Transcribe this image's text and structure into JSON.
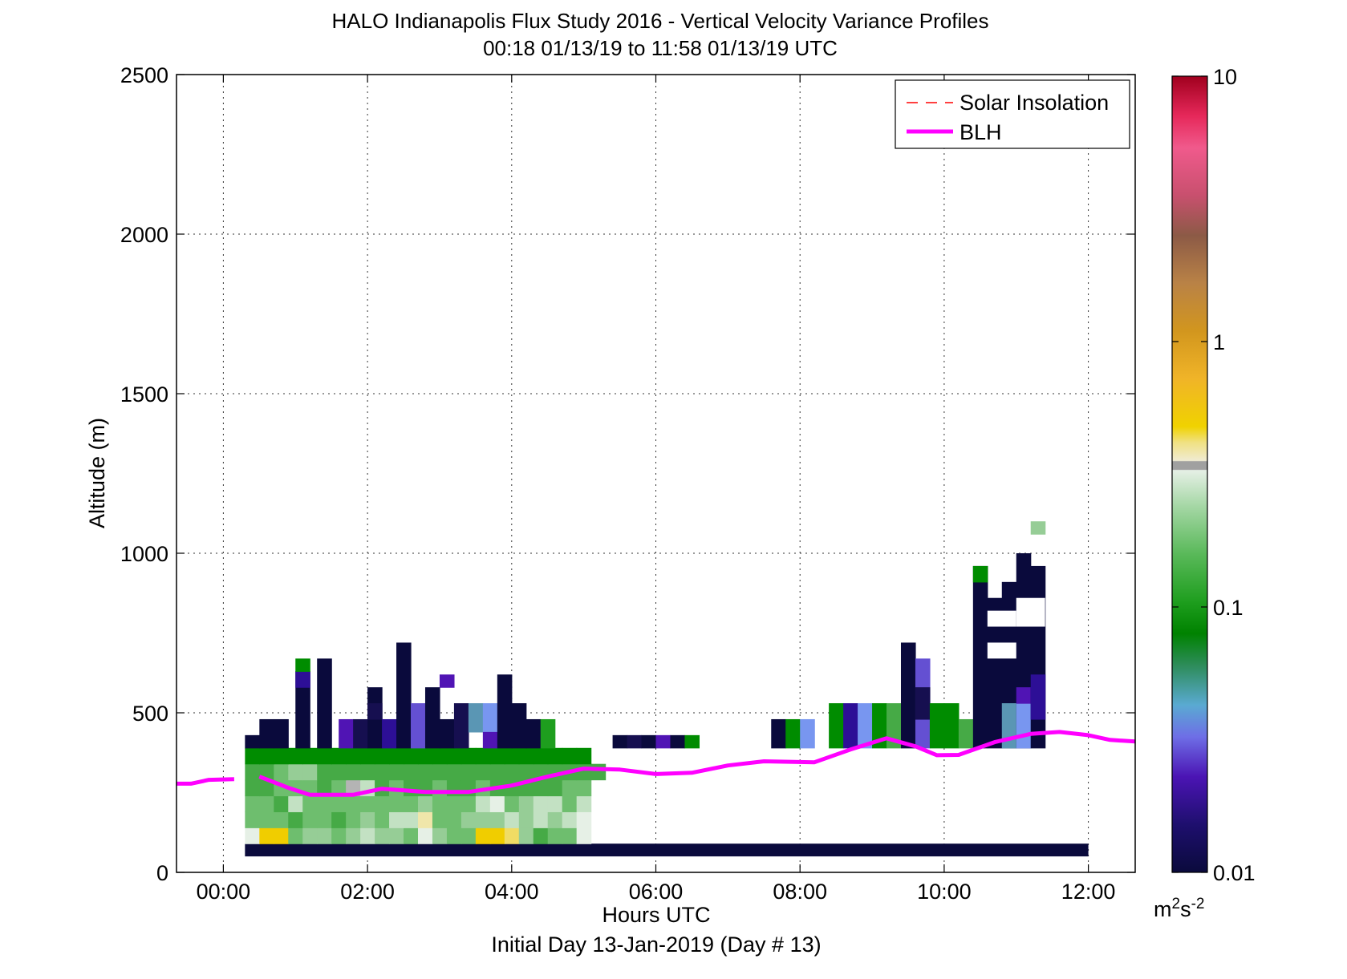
{
  "chart_data": {
    "type": "heatmap",
    "title": "HALO Indianapolis Flux Study 2016 - Vertical Velocity Variance Profiles",
    "subtitle": "00:18 01/13/19 to 11:58 01/13/19  UTC",
    "xlabel": "Hours UTC",
    "xlabel2": "Initial Day 13-Jan-2019 (Day # 13)",
    "ylabel": "Altitude (m)",
    "colorbar_units": "m^2 s^-2",
    "colorbar_units_parts": [
      "m",
      "2",
      "s",
      "-2"
    ],
    "xlim_hours": [
      -0.65,
      12.65
    ],
    "ylim": [
      0,
      2500
    ],
    "x_ticks": [
      {
        "v": 0,
        "label": "00:00"
      },
      {
        "v": 2,
        "label": "02:00"
      },
      {
        "v": 4,
        "label": "04:00"
      },
      {
        "v": 6,
        "label": "06:00"
      },
      {
        "v": 8,
        "label": "08:00"
      },
      {
        "v": 10,
        "label": "10:00"
      },
      {
        "v": 12,
        "label": "12:00"
      }
    ],
    "y_ticks": [
      {
        "v": 0,
        "label": "0"
      },
      {
        "v": 500,
        "label": "500"
      },
      {
        "v": 1000,
        "label": "1000"
      },
      {
        "v": 1500,
        "label": "1500"
      },
      {
        "v": 2000,
        "label": "2000"
      },
      {
        "v": 2500,
        "label": "2500"
      }
    ],
    "colorbar_ticks": [
      {
        "v": 0.01,
        "label": "0.01"
      },
      {
        "v": 0.1,
        "label": "0.1"
      },
      {
        "v": 1,
        "label": "1"
      },
      {
        "v": 10,
        "label": "10"
      }
    ],
    "colorbar_range": [
      0.01,
      10
    ],
    "colorbar_scale": "log",
    "grid": true,
    "legend_position": "top-right",
    "legend": [
      {
        "label": "Solar Insolation",
        "style": "dashed",
        "color": "#ff0000"
      },
      {
        "label": "BLH",
        "style": "solid",
        "color": "#ff00ff"
      }
    ],
    "colors": {
      "c0": "#0a0a3c",
      "c1": "#160f50",
      "c2": "#2d0f96",
      "c3": "#5014b4",
      "c4": "#6450d2",
      "c5": "#7896f0",
      "c6": "#5a96b4",
      "c7": "#288c64",
      "c8": "#008c00",
      "c9": "#1e9e1e",
      "c10": "#46aa46",
      "c11": "#6ebe6e",
      "c12": "#96cd96",
      "c13": "#c3e1c3",
      "c14": "#e6f0e6",
      "c15": "#b4b4b4",
      "c16": "#f0e6aa",
      "c17": "#f0dc64",
      "c18": "#f0cd00",
      "c19": "#f0b41e",
      "blh": "#ff00ff"
    },
    "bin_hours": 0.2,
    "bin_start_hour": 0.3,
    "bin_altitude_m": 50,
    "bin_base_altitude_m": 50,
    "rows": [
      "000000000000000000000000000000000000000000000000",
      "141818111212111213121211141211111818171210111114",
      "111111101111101112111313161111121212131213121314",
      "111110131111111111111111121111111314111213131113",
      "1010111111101115131011101011101011101010101011111",
      "10101112121010101010101010101010101010101010101010",
      "080808080808080808080808080808080808080808080808"
    ],
    "blh": [
      {
        "h": -0.65,
        "alt": 278
      },
      {
        "h": -0.45,
        "alt": 278
      },
      {
        "h": -0.2,
        "alt": 290
      },
      {
        "h": 0.15,
        "alt": 292
      }
    ],
    "blh2": [
      {
        "h": 0.5,
        "alt": 300
      },
      {
        "h": 0.9,
        "alt": 265
      },
      {
        "h": 1.2,
        "alt": 243
      },
      {
        "h": 1.8,
        "alt": 243
      },
      {
        "h": 2.2,
        "alt": 262
      },
      {
        "h": 2.8,
        "alt": 252
      },
      {
        "h": 3.4,
        "alt": 252
      },
      {
        "h": 4.0,
        "alt": 272
      },
      {
        "h": 4.5,
        "alt": 300
      },
      {
        "h": 5.0,
        "alt": 325
      },
      {
        "h": 5.5,
        "alt": 322
      },
      {
        "h": 6.0,
        "alt": 308
      },
      {
        "h": 6.5,
        "alt": 312
      },
      {
        "h": 7.0,
        "alt": 335
      },
      {
        "h": 7.5,
        "alt": 348
      },
      {
        "h": 8.2,
        "alt": 345
      },
      {
        "h": 8.7,
        "alt": 385
      },
      {
        "h": 9.2,
        "alt": 420
      },
      {
        "h": 9.6,
        "alt": 395
      },
      {
        "h": 9.9,
        "alt": 367
      },
      {
        "h": 10.2,
        "alt": 368
      },
      {
        "h": 10.7,
        "alt": 408
      },
      {
        "h": 11.2,
        "alt": 434
      },
      {
        "h": 11.6,
        "alt": 440
      },
      {
        "h": 12.0,
        "alt": 430
      },
      {
        "h": 12.3,
        "alt": 415
      },
      {
        "h": 12.65,
        "alt": 410
      }
    ]
  }
}
